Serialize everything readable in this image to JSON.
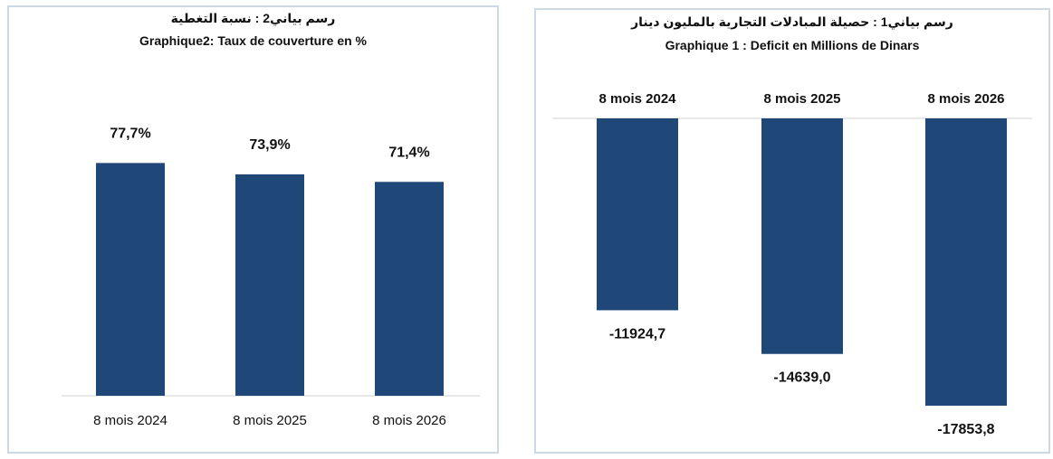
{
  "chart_data": [
    {
      "type": "bar",
      "title_ar": "رسم بياني2 :  نسبة التغطية",
      "title": "Graphique2: Taux de couverture en %",
      "categories": [
        "8 mois 2024",
        "8 mois 2025",
        "8 mois 2026"
      ],
      "values": [
        77.7,
        73.9,
        71.4
      ],
      "value_labels": [
        "77,7%",
        "73,9%",
        "71,4%"
      ],
      "ylim": [
        0,
        100
      ],
      "grid": false,
      "bar_color": "#1f4778"
    },
    {
      "type": "bar",
      "title_ar": "رسم بياني1 :  حصيلة المبادلات التجارية بالمليون دينار",
      "title": "Graphique 1 : Deficit en Millions de Dinars",
      "categories": [
        "8 mois 2024",
        "8 mois 2025",
        "8 mois 2026"
      ],
      "values": [
        -11924.7,
        -14639.0,
        -17853.8
      ],
      "value_labels": [
        "-11924,7",
        "-14639,0",
        "-17853,8"
      ],
      "ylim": [
        -18000,
        0
      ],
      "grid": false,
      "bar_color": "#1f4778"
    }
  ]
}
